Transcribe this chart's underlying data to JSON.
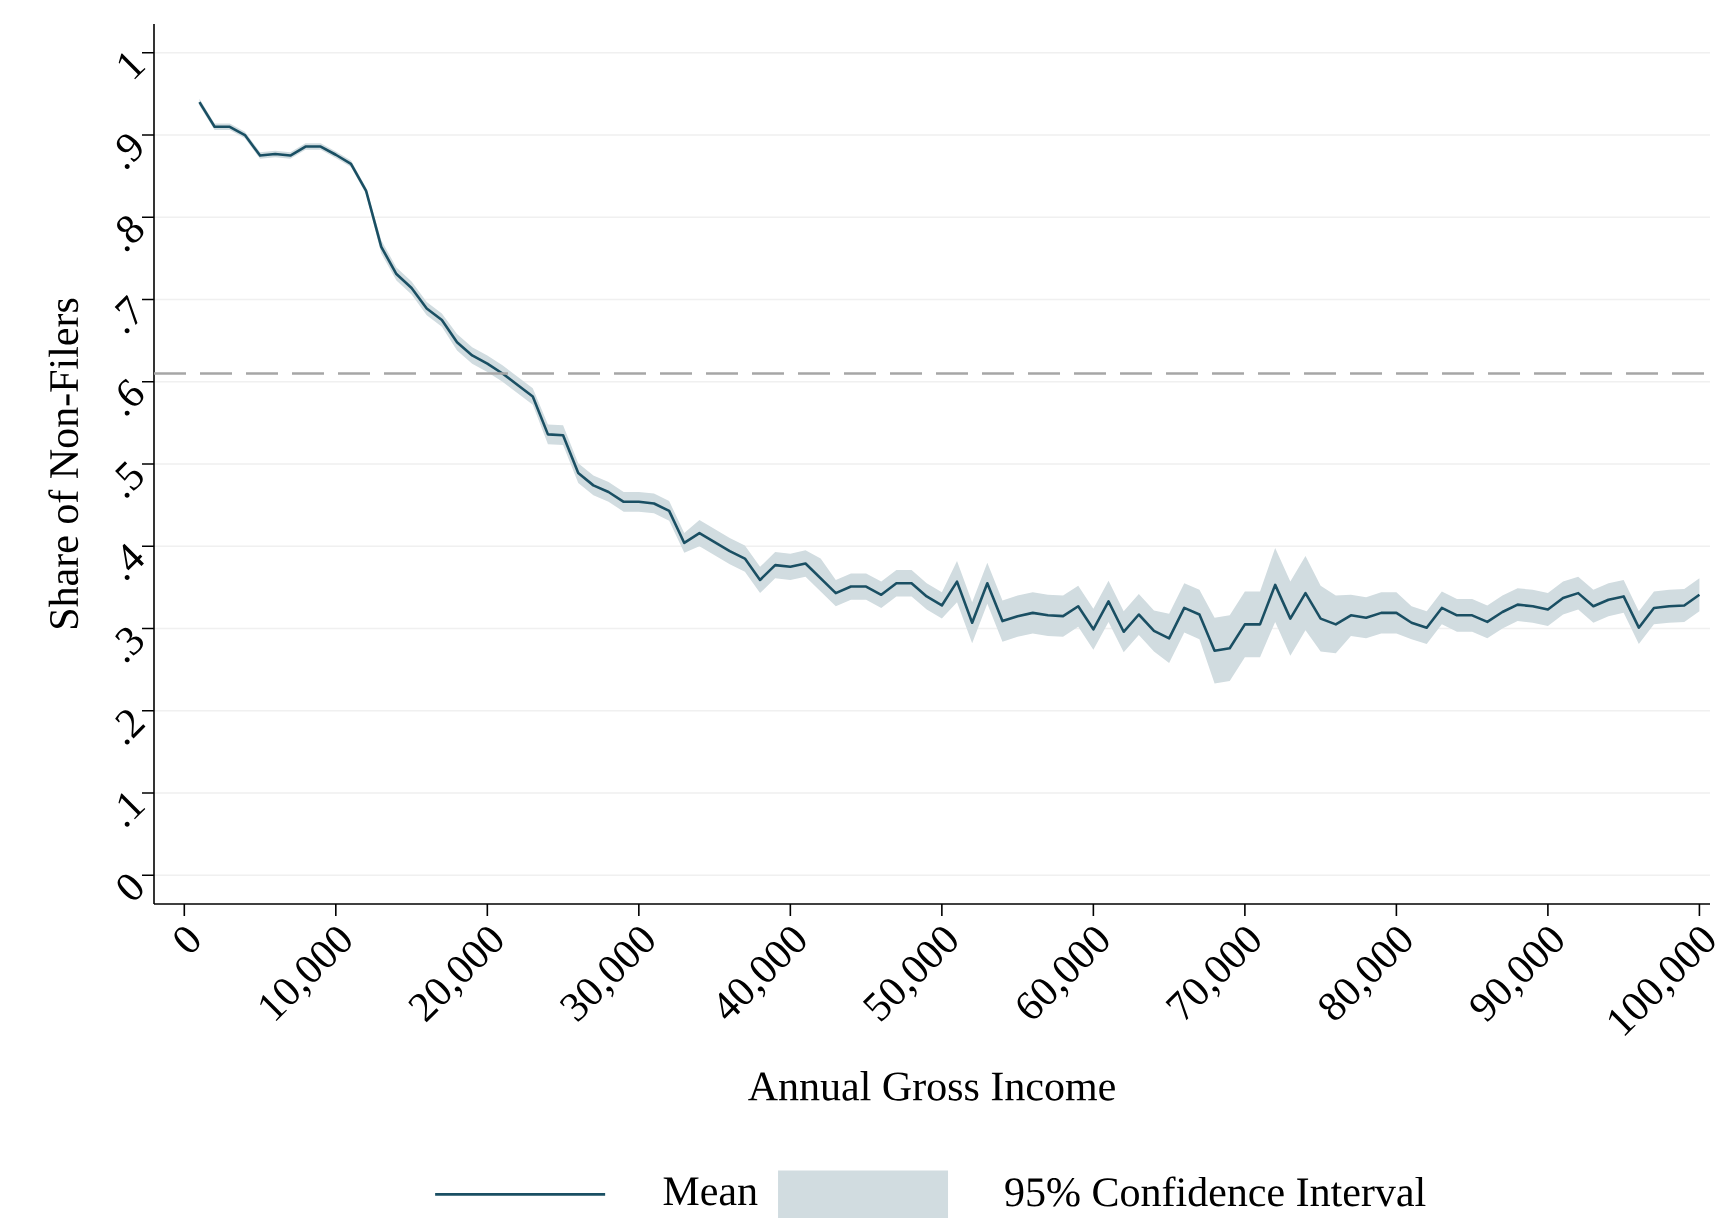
{
  "chart_data": {
    "type": "line",
    "xlabel": "Annual Gross Income",
    "ylabel": "Share of Non-Filers",
    "x": [
      1000,
      2000,
      3000,
      4000,
      5000,
      6000,
      7000,
      8000,
      9000,
      10000,
      11000,
      12000,
      13000,
      14000,
      15000,
      16000,
      17000,
      18000,
      19000,
      20000,
      21000,
      22000,
      23000,
      24000,
      25000,
      26000,
      27000,
      28000,
      29000,
      30000,
      31000,
      32000,
      33000,
      34000,
      35000,
      36000,
      37000,
      38000,
      39000,
      40000,
      41000,
      42000,
      43000,
      44000,
      45000,
      46000,
      47000,
      48000,
      49000,
      50000,
      51000,
      52000,
      53000,
      54000,
      55000,
      56000,
      57000,
      58000,
      59000,
      60000,
      61000,
      62000,
      63000,
      64000,
      65000,
      66000,
      67000,
      68000,
      69000,
      70000,
      71000,
      72000,
      73000,
      74000,
      75000,
      76000,
      77000,
      78000,
      79000,
      80000,
      81000,
      82000,
      83000,
      84000,
      85000,
      86000,
      87000,
      88000,
      89000,
      90000,
      91000,
      92000,
      93000,
      94000,
      95000,
      96000,
      97000,
      98000,
      99000,
      100000
    ],
    "series": [
      {
        "name": "Mean",
        "color": "#1a4f63",
        "values": [
          0.94,
          0.91,
          0.91,
          0.9,
          0.875,
          0.877,
          0.875,
          0.886,
          0.886,
          0.876,
          0.865,
          0.832,
          0.764,
          0.731,
          0.714,
          0.689,
          0.675,
          0.648,
          0.632,
          0.622,
          0.61,
          0.596,
          0.582,
          0.536,
          0.535,
          0.489,
          0.474,
          0.466,
          0.454,
          0.454,
          0.452,
          0.443,
          0.404,
          0.416,
          0.405,
          0.394,
          0.385,
          0.359,
          0.377,
          0.375,
          0.379,
          0.361,
          0.343,
          0.351,
          0.351,
          0.341,
          0.355,
          0.355,
          0.339,
          0.328,
          0.357,
          0.307,
          0.355,
          0.309,
          0.315,
          0.319,
          0.316,
          0.315,
          0.327,
          0.299,
          0.333,
          0.296,
          0.317,
          0.297,
          0.288,
          0.325,
          0.317,
          0.273,
          0.276,
          0.305,
          0.305,
          0.353,
          0.312,
          0.343,
          0.312,
          0.305,
          0.316,
          0.313,
          0.319,
          0.319,
          0.307,
          0.301,
          0.325,
          0.316,
          0.316,
          0.308,
          0.32,
          0.329,
          0.327,
          0.323,
          0.337,
          0.343,
          0.327,
          0.335,
          0.339,
          0.301,
          0.325,
          0.327,
          0.328,
          0.341
        ],
        "lower": [
          0.936,
          0.906,
          0.906,
          0.896,
          0.871,
          0.873,
          0.871,
          0.882,
          0.882,
          0.872,
          0.861,
          0.828,
          0.756,
          0.723,
          0.706,
          0.681,
          0.667,
          0.638,
          0.622,
          0.612,
          0.6,
          0.586,
          0.572,
          0.524,
          0.523,
          0.477,
          0.462,
          0.454,
          0.442,
          0.442,
          0.44,
          0.431,
          0.392,
          0.4,
          0.389,
          0.378,
          0.369,
          0.343,
          0.361,
          0.359,
          0.363,
          0.345,
          0.327,
          0.335,
          0.335,
          0.325,
          0.339,
          0.339,
          0.323,
          0.312,
          0.332,
          0.282,
          0.33,
          0.284,
          0.29,
          0.294,
          0.291,
          0.29,
          0.302,
          0.274,
          0.308,
          0.271,
          0.292,
          0.272,
          0.258,
          0.295,
          0.287,
          0.233,
          0.236,
          0.265,
          0.265,
          0.308,
          0.267,
          0.298,
          0.272,
          0.27,
          0.291,
          0.288,
          0.294,
          0.294,
          0.287,
          0.281,
          0.305,
          0.296,
          0.296,
          0.288,
          0.3,
          0.309,
          0.307,
          0.303,
          0.317,
          0.323,
          0.307,
          0.315,
          0.319,
          0.281,
          0.305,
          0.307,
          0.308,
          0.321
        ],
        "upper": [
          0.944,
          0.914,
          0.914,
          0.904,
          0.879,
          0.881,
          0.879,
          0.89,
          0.89,
          0.88,
          0.869,
          0.836,
          0.772,
          0.739,
          0.722,
          0.697,
          0.683,
          0.658,
          0.642,
          0.632,
          0.62,
          0.606,
          0.592,
          0.548,
          0.547,
          0.501,
          0.486,
          0.478,
          0.466,
          0.466,
          0.464,
          0.455,
          0.416,
          0.432,
          0.421,
          0.41,
          0.401,
          0.375,
          0.393,
          0.391,
          0.395,
          0.385,
          0.359,
          0.367,
          0.367,
          0.357,
          0.371,
          0.371,
          0.355,
          0.344,
          0.382,
          0.332,
          0.38,
          0.334,
          0.34,
          0.344,
          0.341,
          0.34,
          0.352,
          0.324,
          0.358,
          0.321,
          0.342,
          0.322,
          0.318,
          0.355,
          0.347,
          0.313,
          0.316,
          0.345,
          0.345,
          0.398,
          0.357,
          0.388,
          0.352,
          0.34,
          0.341,
          0.338,
          0.344,
          0.344,
          0.327,
          0.321,
          0.345,
          0.336,
          0.336,
          0.328,
          0.34,
          0.349,
          0.347,
          0.343,
          0.357,
          0.363,
          0.347,
          0.355,
          0.359,
          0.321,
          0.345,
          0.347,
          0.348,
          0.361
        ]
      }
    ],
    "annotations": [
      "95% Confidence Interval"
    ],
    "xlim": [
      -2000,
      100700
    ],
    "ylim": [
      -0.035,
      1.035
    ],
    "xticks": [
      0,
      {
        "value": 10000,
        "label": "10,000"
      },
      {
        "value": 20000,
        "label": "20,000"
      },
      {
        "value": 30000,
        "label": "30,000"
      },
      {
        "value": 40000,
        "label": "40,000"
      },
      {
        "value": 50000,
        "label": "50,000"
      },
      {
        "value": 60000,
        "label": "60,000"
      },
      {
        "value": 70000,
        "label": "70,000"
      },
      {
        "value": 80000,
        "label": "80,000"
      },
      {
        "value": 90000,
        "label": "90,000"
      },
      {
        "value": 100000,
        "label": "100,000"
      }
    ],
    "yticks": [
      0,
      {
        "value": 0.1,
        "label": ".1"
      },
      {
        "value": 0.2,
        "label": ".2"
      },
      {
        "value": 0.3,
        "label": ".3"
      },
      {
        "value": 0.4,
        "label": ".4"
      },
      {
        "value": 0.5,
        "label": ".5"
      },
      {
        "value": 0.6,
        "label": ".6"
      },
      {
        "value": 0.7,
        "label": ".7"
      },
      {
        "value": 0.8,
        "label": ".8"
      },
      {
        "value": 0.9,
        "label": ".9"
      },
      1
    ],
    "ref_lines": [
      {
        "axis": "y",
        "value": 0.61,
        "color": "#a6a6a6",
        "line_style": "dashed"
      }
    ],
    "grid": "y",
    "legend": "bottom",
    "marker": "none",
    "line_style": "solid"
  }
}
